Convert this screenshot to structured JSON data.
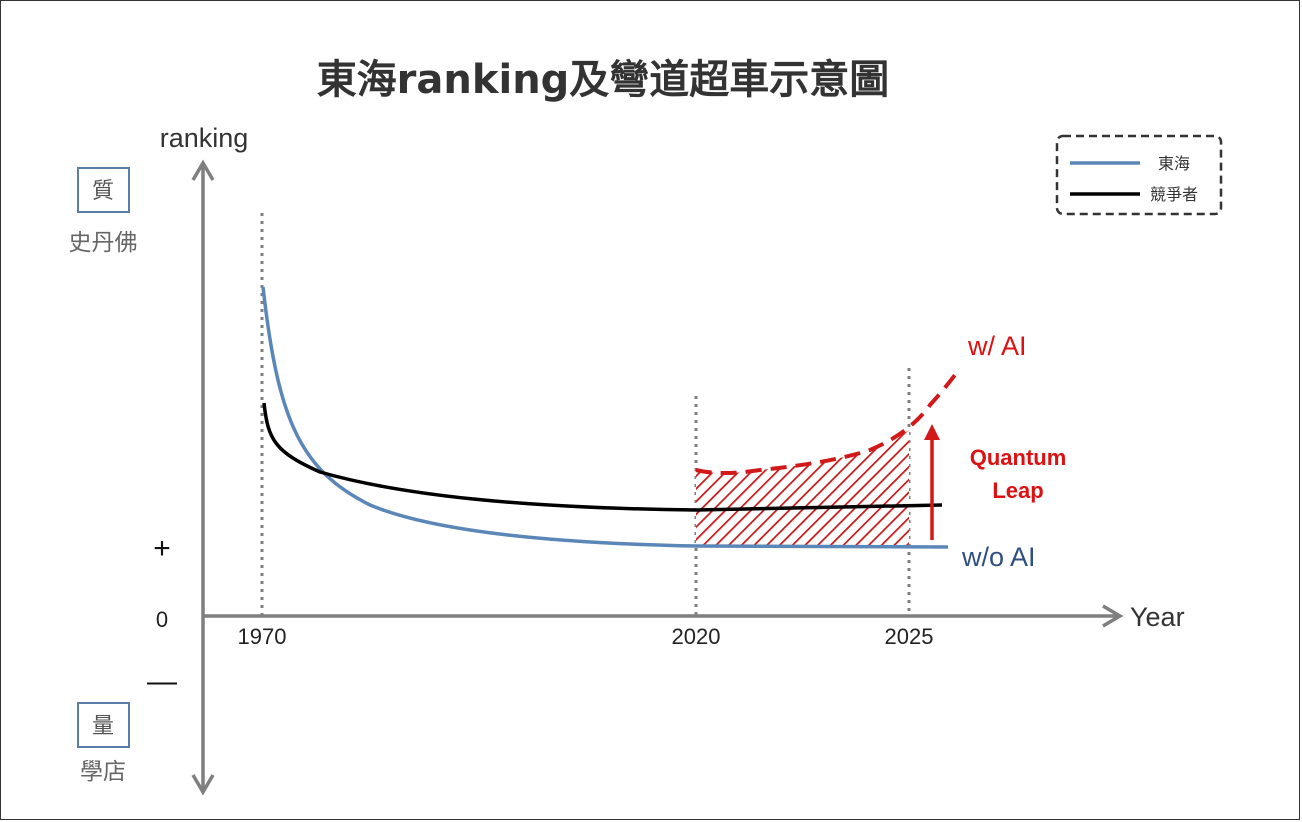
{
  "title": "東海ranking及彎道超車示意圖",
  "y_axis": {
    "label": "ranking",
    "top_box": "質",
    "top_sub": "史丹佛",
    "bottom_box": "量",
    "bottom_sub": "學店",
    "plus": "+",
    "zero": "0",
    "minus": "—"
  },
  "x_axis": {
    "label": "Year",
    "ticks": [
      "1970",
      "2020",
      "2025"
    ]
  },
  "legend": [
    {
      "label": "東海",
      "color": "#5b86b8"
    },
    {
      "label": "競爭者",
      "color": "#000000"
    }
  ],
  "annotations": {
    "with_ai": "w/ AI",
    "without_ai": "w/o  AI",
    "leap_line1": "Quantum",
    "leap_line2": "Leap"
  },
  "colors": {
    "tunghai": "#5b86b8",
    "competitor": "#000000",
    "ai": "#d11919",
    "axis": "#7f7f7f"
  }
}
